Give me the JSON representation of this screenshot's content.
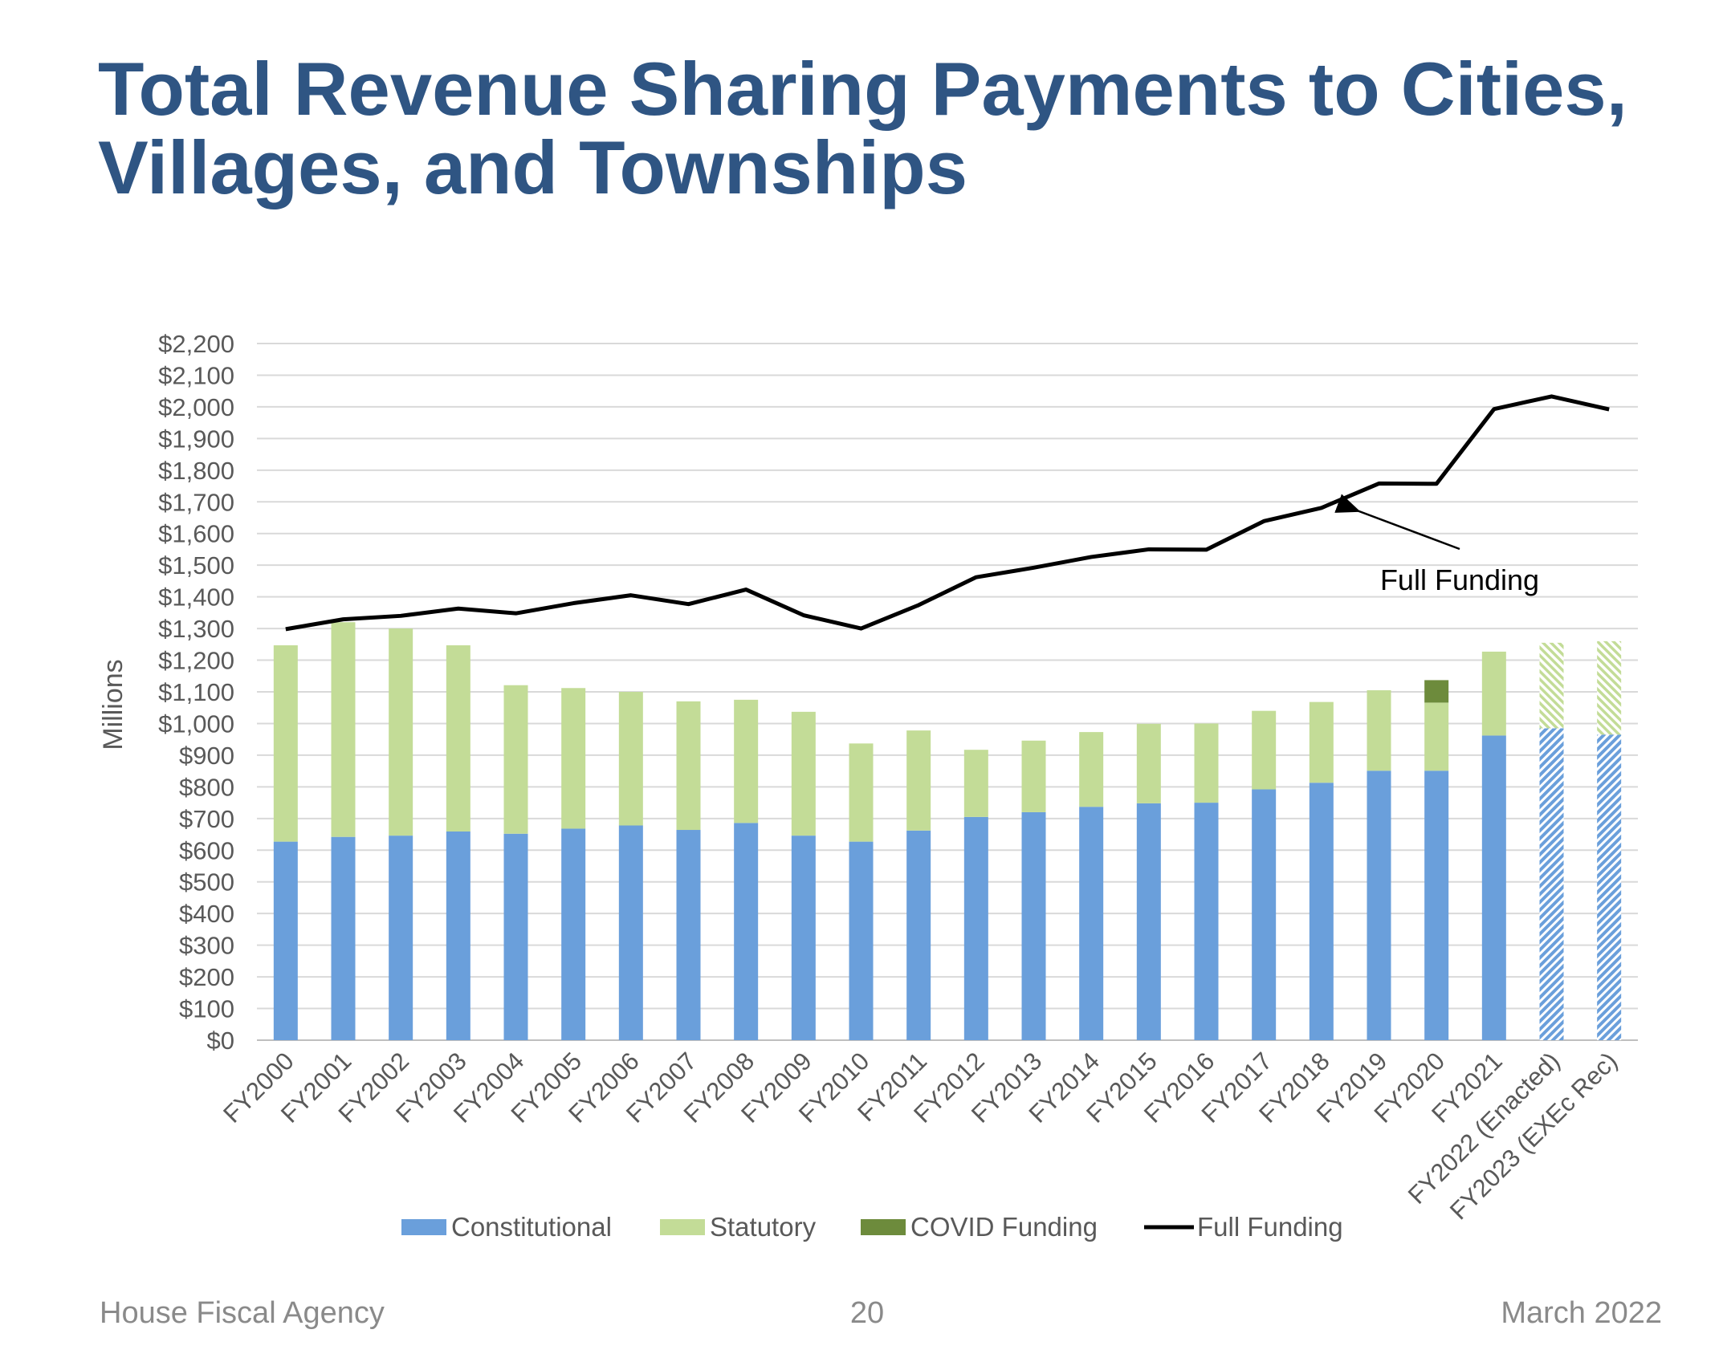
{
  "slide": {
    "title_line1": "Total Revenue Sharing Payments to Cities,",
    "title_line2": "Villages, and Townships",
    "footer_left": "House Fiscal Agency",
    "page_number": "20",
    "footer_right": "March 2022"
  },
  "chart_data": {
    "type": "bar",
    "stacked": true,
    "ylabel": "Millions",
    "ylim": [
      0,
      2200
    ],
    "ytick_step": 100,
    "ytick_labels": [
      "$0",
      "$100",
      "$200",
      "$300",
      "$400",
      "$500",
      "$600",
      "$700",
      "$800",
      "$900",
      "$1,000",
      "$1,100",
      "$1,200",
      "$1,300",
      "$1,400",
      "$1,500",
      "$1,600",
      "$1,700",
      "$1,800",
      "$1,900",
      "$2,000",
      "$2,100",
      "$2,200"
    ],
    "grid": true,
    "categories": [
      "FY2000",
      "FY2001",
      "FY2002",
      "FY2003",
      "FY2004",
      "FY2005",
      "FY2006",
      "FY2007",
      "FY2008",
      "FY2009",
      "FY2010",
      "FY2011",
      "FY2012",
      "FY2013",
      "FY2014",
      "FY2015",
      "FY2016",
      "FY2017",
      "FY2018",
      "FY2019",
      "FY2020",
      "FY2021",
      "FY2022 (Enacted)",
      "FY2023 (EXEc Rec)"
    ],
    "hatched_categories": [
      "FY2022 (Enacted)",
      "FY2023 (EXEc Rec)"
    ],
    "series": [
      {
        "name": "Constitutional",
        "kind": "bar",
        "color": "#6a9fdb",
        "values": [
          627,
          642,
          646,
          659,
          652,
          668,
          678,
          664,
          686,
          646,
          627,
          662,
          705,
          720,
          737,
          748,
          750,
          792,
          813,
          851,
          851,
          962,
          985,
          965
        ]
      },
      {
        "name": "Statutory",
        "kind": "bar",
        "color": "#c3dc97",
        "values": [
          620,
          678,
          654,
          588,
          469,
          444,
          422,
          406,
          389,
          391,
          310,
          316,
          212,
          226,
          236,
          251,
          250,
          248,
          255,
          254,
          215,
          265,
          270,
          295
        ]
      },
      {
        "name": "COVID Funding",
        "kind": "bar",
        "color": "#6d8b3c",
        "values": [
          0,
          0,
          0,
          0,
          0,
          0,
          0,
          0,
          0,
          0,
          0,
          0,
          0,
          0,
          0,
          0,
          0,
          0,
          0,
          0,
          71,
          0,
          0,
          0
        ]
      },
      {
        "name": "Full Funding",
        "kind": "line",
        "color": "#000000",
        "values": [
          1298,
          1329,
          1340,
          1363,
          1348,
          1380,
          1405,
          1377,
          1423,
          1342,
          1300,
          1374,
          1462,
          1492,
          1526,
          1550,
          1549,
          1639,
          1681,
          1758,
          1757,
          1993,
          2033,
          1992
        ]
      }
    ],
    "annotation": {
      "text": "Full Funding",
      "points_to": "FY2018"
    },
    "legend_position": "bottom"
  }
}
